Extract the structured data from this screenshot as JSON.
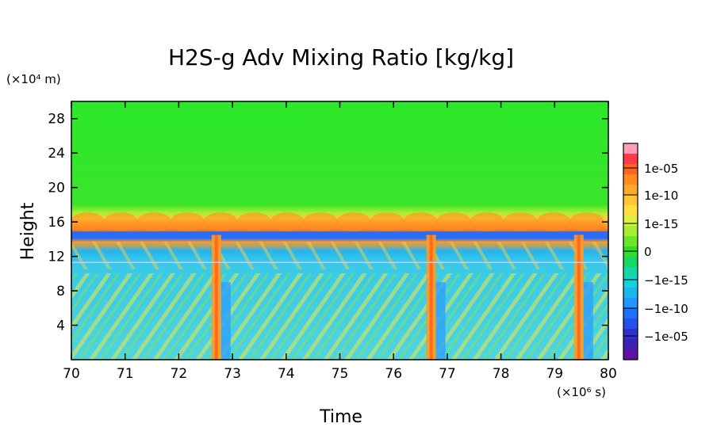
{
  "chart_data": {
    "type": "heatmap",
    "title": "H2S-g Adv Mixing Ratio [kg/kg]",
    "xlabel": "Time",
    "ylabel": "Height",
    "x_unit": "(×10⁶ s)",
    "y_unit": "(×10⁴ m)",
    "xlim": [
      70,
      80
    ],
    "ylim": [
      0,
      30
    ],
    "x_ticks": [
      "70",
      "71",
      "72",
      "73",
      "74",
      "75",
      "76",
      "77",
      "78",
      "79",
      "80"
    ],
    "y_ticks": [
      "4",
      "8",
      "12",
      "16",
      "20",
      "24",
      "28"
    ],
    "colorbar": {
      "labels": [
        "1e-05",
        "1e-10",
        "1e-15",
        "0",
        "−1e-15",
        "−1e-10",
        "−1e-05"
      ],
      "colors": [
        "#ff9eb4",
        "#ff3a48",
        "#ff6420",
        "#ff8c1e",
        "#ffa82c",
        "#ffc638",
        "#ffe040",
        "#dcf03c",
        "#a8ee30",
        "#6ce62c",
        "#30dc2c",
        "#14d860",
        "#14d8a4",
        "#18d0d8",
        "#18b8e8",
        "#2098ff",
        "#2070ff",
        "#2850e8",
        "#3030d0",
        "#4020b0",
        "#6010a0"
      ]
    },
    "regions": {
      "upper": "~0 (green) above ~17×10⁴ m",
      "transition": "positive band ~15–17×10⁴ m",
      "blue_band": "negative band ~14.5×10⁴ m",
      "lower": "mixed small negative/positive below ~14×10⁴ m"
    },
    "plumes_x": [
      72.7,
      76.7,
      79.45
    ]
  }
}
